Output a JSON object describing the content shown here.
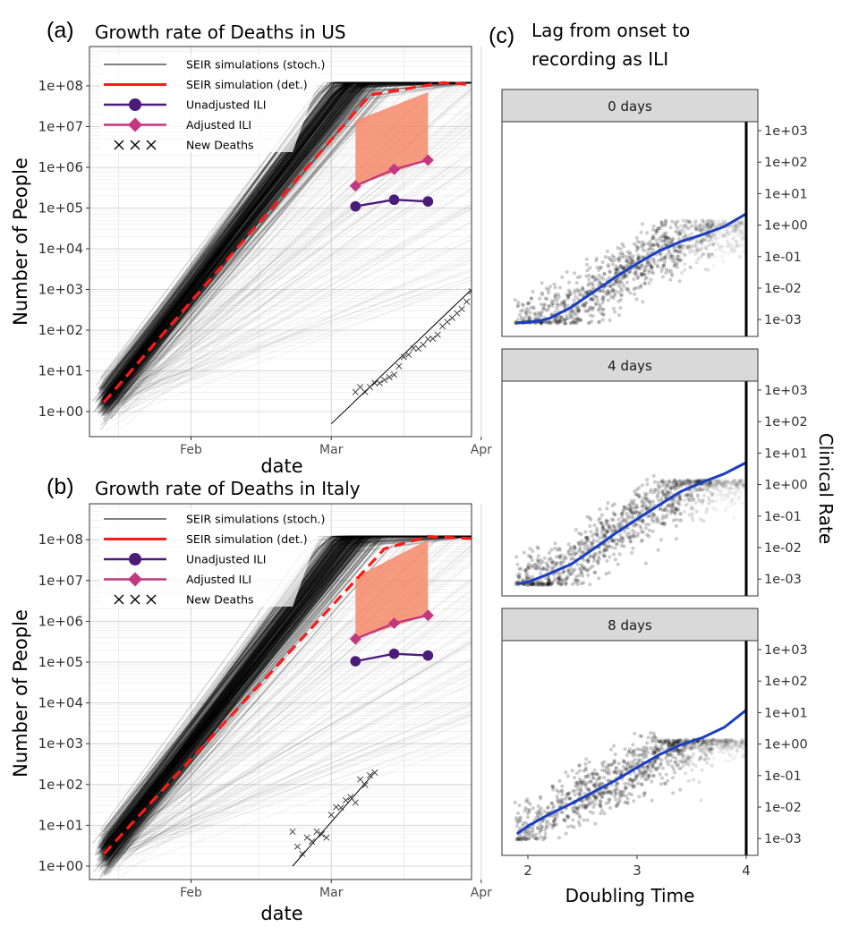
{
  "panel_a": {
    "tag": "(a)",
    "title": "Growth rate of Deaths in US",
    "xlabel": "date",
    "ylabel": "Number of People"
  },
  "panel_b": {
    "tag": "(b)",
    "title": "Growth rate of Deaths in Italy",
    "xlabel": "date",
    "ylabel": "Number of People"
  },
  "panel_c": {
    "tag": "(c)",
    "title_line1": "Lag from onset to",
    "title_line2": "recording as ILI",
    "xlabel": "Doubling Time",
    "ylabel": "Clinical Rate"
  },
  "legend_items": [
    "SEIR simulations (stoch.)",
    "SEIR simulation (det.)",
    "Unadjusted ILI",
    "Adjusted ILI",
    "New Deaths"
  ],
  "colors": {
    "stoch": "#000000",
    "det": "#ff1a1a",
    "unadjusted": "#4b1b7a",
    "adjusted": "#c2377f",
    "ribbon": "#f58a6a",
    "loess": "#1a3fc4",
    "grid_minor": "#ebebeb",
    "grid_major": "#d9d9d9",
    "strip": "#d9d9d9"
  },
  "chart_data": [
    {
      "id": "a",
      "type": "line",
      "title": "Growth rate of Deaths in US",
      "xlabel": "date",
      "ylabel": "Number of People",
      "x_ticks": [
        "Feb",
        "Mar",
        "Apr"
      ],
      "y_scale": "log10",
      "y_ticks": [
        "1e+00",
        "1e+01",
        "1e+02",
        "1e+03",
        "1e+04",
        "1e+05",
        "1e+06",
        "1e+07",
        "1e+08"
      ],
      "legend": [
        "SEIR simulations (stoch.)",
        "SEIR simulation (det.)",
        "Unadjusted ILI",
        "Adjusted ILI",
        "New Deaths"
      ],
      "legend_position": "top-left",
      "det_simulation": {
        "x": [
          "2020-01-15",
          "2020-03-10",
          "2020-03-25",
          "2020-04-05"
        ],
        "y": [
          1.7,
          60000000,
          120000000,
          100000000
        ]
      },
      "unadjusted_ili": {
        "x": [
          "2020-03-07",
          "2020-03-15",
          "2020-03-22"
        ],
        "y": [
          110000,
          160000,
          145000
        ]
      },
      "adjusted_ili": {
        "x": [
          "2020-03-07",
          "2020-03-15",
          "2020-03-22"
        ],
        "y": [
          350000,
          900000,
          1500000
        ]
      },
      "ribbon": {
        "x": [
          "2020-03-07",
          "2020-03-22"
        ],
        "low": [
          350000,
          1500000
        ],
        "high": [
          14000000,
          70000000
        ]
      },
      "new_deaths": {
        "x": [
          "2020-03-07",
          "2020-03-08",
          "2020-03-09",
          "2020-03-10",
          "2020-03-11",
          "2020-03-12",
          "2020-03-13",
          "2020-03-14",
          "2020-03-15",
          "2020-03-16",
          "2020-03-17",
          "2020-03-18",
          "2020-03-19",
          "2020-03-20",
          "2020-03-21",
          "2020-03-22",
          "2020-03-23",
          "2020-03-24",
          "2020-03-25",
          "2020-03-26",
          "2020-03-27",
          "2020-03-28",
          "2020-03-29",
          "2020-03-30",
          "2020-03-31"
        ],
        "y": [
          3,
          4,
          3,
          4,
          5,
          5,
          6,
          7,
          8,
          13,
          22,
          25,
          36,
          35,
          44,
          60,
          62,
          77,
          125,
          160,
          200,
          260,
          330,
          500,
          900
        ]
      },
      "deaths_fit": {
        "x": [
          "2020-03-02",
          "2020-03-31"
        ],
        "y": [
          0.5,
          1000
        ]
      }
    },
    {
      "id": "b",
      "type": "line",
      "title": "Growth rate of Deaths in Italy",
      "xlabel": "date",
      "ylabel": "Number of People",
      "x_ticks": [
        "Feb",
        "Mar",
        "Apr"
      ],
      "y_scale": "log10",
      "y_ticks": [
        "1e+00",
        "1e+01",
        "1e+02",
        "1e+03",
        "1e+04",
        "1e+05",
        "1e+06",
        "1e+07",
        "1e+08"
      ],
      "legend": [
        "SEIR simulations (stoch.)",
        "SEIR simulation (det.)",
        "Unadjusted ILI",
        "Adjusted ILI",
        "New Deaths"
      ],
      "legend_position": "top-left",
      "det_simulation": {
        "x": [
          "2020-01-15",
          "2020-03-13",
          "2020-03-22",
          "2020-04-05"
        ],
        "y": [
          2,
          60000000,
          120000000,
          100000000
        ]
      },
      "unadjusted_ili": {
        "x": [
          "2020-03-07",
          "2020-03-15",
          "2020-03-22"
        ],
        "y": [
          105000,
          160000,
          145000
        ]
      },
      "adjusted_ili": {
        "x": [
          "2020-03-07",
          "2020-03-15",
          "2020-03-22"
        ],
        "y": [
          370000,
          900000,
          1400000
        ]
      },
      "ribbon": {
        "x": [
          "2020-03-07",
          "2020-03-22"
        ],
        "low": [
          370000,
          1400000
        ],
        "high": [
          12000000,
          100000000
        ]
      },
      "new_deaths": {
        "x": [
          "2020-02-23",
          "2020-02-24",
          "2020-02-25",
          "2020-02-26",
          "2020-02-27",
          "2020-02-28",
          "2020-02-29",
          "2020-03-01",
          "2020-03-02",
          "2020-03-03",
          "2020-03-04",
          "2020-03-05",
          "2020-03-06",
          "2020-03-07",
          "2020-03-08",
          "2020-03-09",
          "2020-03-10",
          "2020-03-11"
        ],
        "y": [
          7,
          3,
          2,
          5,
          4,
          7,
          6,
          5,
          18,
          28,
          27,
          41,
          49,
          36,
          133,
          97,
          168,
          196
        ]
      },
      "deaths_fit": {
        "x": [
          "2020-02-23",
          "2020-03-11"
        ],
        "y": [
          1,
          200
        ]
      }
    },
    {
      "id": "c",
      "type": "scatter",
      "title": "Lag from onset to recording as ILI",
      "xlabel": "Doubling Time",
      "ylabel": "Clinical Rate",
      "x_ticks": [
        "2",
        "3",
        "4"
      ],
      "y_scale": "log10",
      "y_ticks": [
        "1e-03",
        "1e-02",
        "1e-01",
        "1e+00",
        "1e+01",
        "1e+02",
        "1e+03"
      ],
      "facets": [
        "0 days",
        "4 days",
        "8 days"
      ],
      "vertical_line_x": 4,
      "smooth": [
        {
          "facet": "0 days",
          "x": [
            1.9,
            2.0,
            2.1,
            2.2,
            2.4,
            2.6,
            2.8,
            3.0,
            3.2,
            3.4,
            3.6,
            3.8,
            4.0
          ],
          "y": [
            0.0008,
            0.00082,
            0.0009,
            0.0011,
            0.0025,
            0.0075,
            0.022,
            0.06,
            0.15,
            0.3,
            0.5,
            0.9,
            2.3
          ]
        },
        {
          "facet": "4 days",
          "x": [
            1.9,
            2.0,
            2.2,
            2.4,
            2.6,
            2.8,
            3.0,
            3.2,
            3.4,
            3.6,
            3.8,
            4.0
          ],
          "y": [
            0.0007,
            0.0008,
            0.0015,
            0.003,
            0.009,
            0.028,
            0.08,
            0.22,
            0.6,
            1.2,
            2.2,
            5
          ]
        },
        {
          "facet": "8 days",
          "x": [
            1.9,
            2.0,
            2.2,
            2.4,
            2.6,
            2.8,
            3.0,
            3.2,
            3.4,
            3.6,
            3.8,
            4.0
          ],
          "y": [
            0.0014,
            0.0025,
            0.006,
            0.013,
            0.03,
            0.07,
            0.18,
            0.45,
            0.95,
            1.6,
            3.4,
            12
          ]
        }
      ]
    }
  ]
}
